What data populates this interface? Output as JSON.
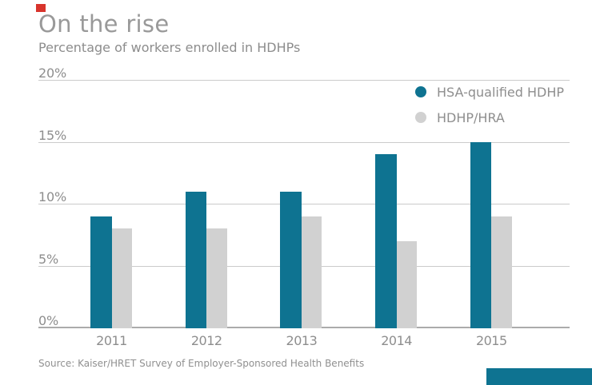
{
  "branding": {
    "red_square_color": "#d8342c",
    "teal_block_color": "#0e7391"
  },
  "header": {
    "title": "On the rise",
    "subtitle": "Percentage of workers enrolled in HDHPs"
  },
  "chart_data": {
    "type": "bar",
    "title": "On the rise",
    "subtitle": "Percentage of workers enrolled in HDHPs",
    "categories": [
      "2011",
      "2012",
      "2013",
      "2014",
      "2015"
    ],
    "series": [
      {
        "name": "HSA-qualified HDHP",
        "color": "#0e7391",
        "values": [
          9,
          11,
          11,
          14,
          15
        ]
      },
      {
        "name": "HDHP/HRA",
        "color": "#d1d1d1",
        "values": [
          8,
          8,
          9,
          7,
          9
        ]
      }
    ],
    "xlabel": "",
    "ylabel": "",
    "ylim": [
      0,
      20
    ],
    "ytick_interval": 5,
    "yticks": [
      "0%",
      "5%",
      "10%",
      "15%",
      "20%"
    ],
    "grid": true,
    "legend_position": "top-right",
    "source": "Source: Kaiser/HRET Survey of Employer-Sponsored Health Benefits"
  },
  "legend": {
    "items": [
      {
        "label": "HSA-qualified HDHP",
        "color": "#0e7391"
      },
      {
        "label": "HDHP/HRA",
        "color": "#d1d1d1"
      }
    ]
  },
  "footer": {
    "source": "Source: Kaiser/HRET Survey of Employer-Sponsored Health Benefits"
  }
}
